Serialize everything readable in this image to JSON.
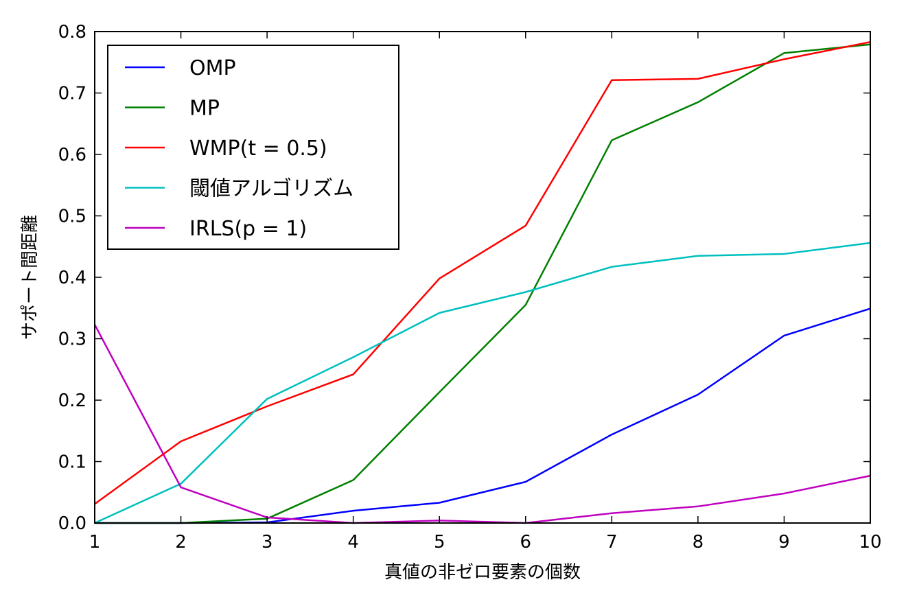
{
  "chart_data": {
    "type": "line",
    "xlabel": "真値の非ゼロ要素の個数",
    "ylabel": "サポート間距離",
    "xlim": [
      1,
      10
    ],
    "ylim": [
      0,
      0.8
    ],
    "xticks": [
      "1",
      "2",
      "3",
      "4",
      "5",
      "6",
      "7",
      "8",
      "9",
      "10"
    ],
    "yticks": [
      "0.0",
      "0.1",
      "0.2",
      "0.3",
      "0.4",
      "0.5",
      "0.6",
      "0.7",
      "0.8"
    ],
    "x": [
      1,
      2,
      3,
      4,
      5,
      6,
      7,
      8,
      9,
      10
    ],
    "grid": false,
    "legend_position": "upper-left",
    "series": [
      {
        "name": "OMP",
        "color": "#0000ff",
        "values": [
          0.0,
          0.0,
          0.001,
          0.02,
          0.033,
          0.067,
          0.144,
          0.209,
          0.305,
          0.349
        ]
      },
      {
        "name": "MP",
        "color": "#008000",
        "values": [
          0.0,
          0.0,
          0.007,
          0.07,
          0.213,
          0.355,
          0.623,
          0.685,
          0.765,
          0.779
        ]
      },
      {
        "name": "WMP(t = 0.5)",
        "color": "#ff0000",
        "values": [
          0.031,
          0.133,
          0.19,
          0.242,
          0.398,
          0.484,
          0.721,
          0.723,
          0.755,
          0.783
        ]
      },
      {
        "name": "閾値アルゴリズム",
        "color": "#00bfbf",
        "values": [
          0.0,
          0.064,
          0.202,
          0.27,
          0.342,
          0.376,
          0.417,
          0.435,
          0.438,
          0.456
        ]
      },
      {
        "name": "IRLS(p = 1)",
        "color": "#bf00bf",
        "values": [
          0.323,
          0.058,
          0.009,
          0.0,
          0.004,
          0.0,
          0.016,
          0.027,
          0.048,
          0.077
        ]
      }
    ]
  }
}
